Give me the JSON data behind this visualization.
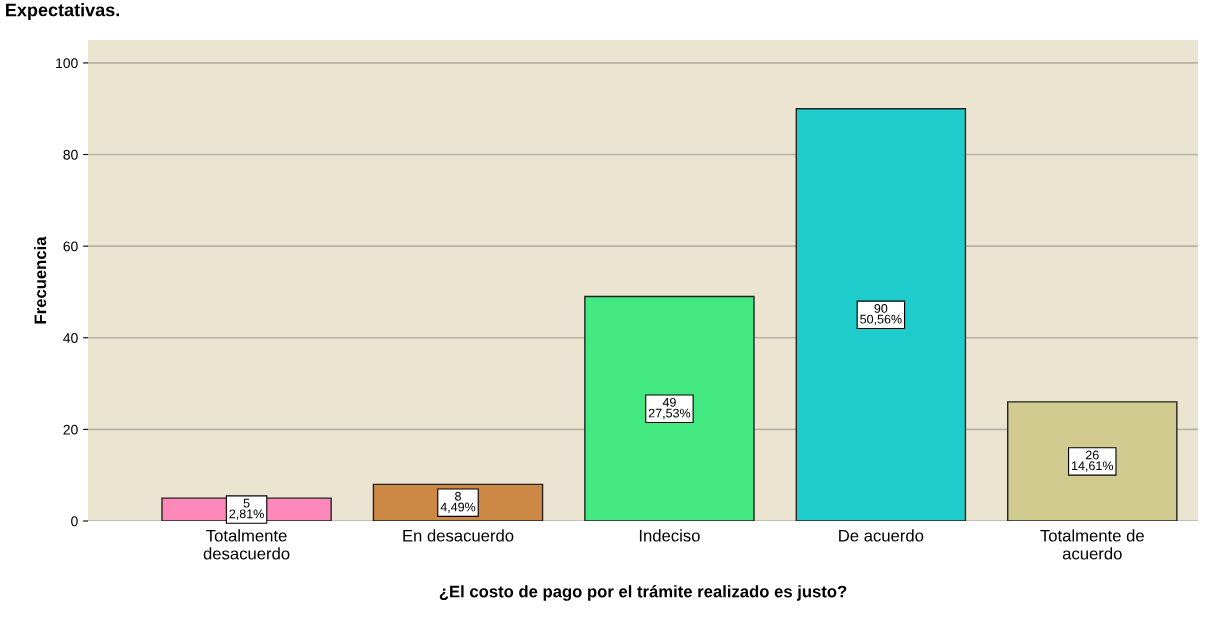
{
  "chart_data": {
    "type": "bar",
    "title": "Expectativas.",
    "xlabel": "¿El costo de pago por el trámite realizado es justo?",
    "ylabel": "Frecuencia",
    "categories": [
      "Totalmente\ndesacuerdo",
      "En desacuerdo",
      "Indeciso",
      "De acuerdo",
      "Totalmente de\nacuerdo"
    ],
    "values": [
      5,
      8,
      49,
      90,
      26
    ],
    "colors": [
      "#ff88bb",
      "#cc8844",
      "#44e880",
      "#1ecccc",
      "#d2cb8f"
    ],
    "value_labels": [
      "5\n2,81%",
      "8\n4,49%",
      "49\n27,53%",
      "90\n50,56%",
      "26\n14,61%"
    ],
    "ylim": [
      0,
      105
    ],
    "yticks": [
      0,
      20,
      40,
      60,
      80,
      100
    ],
    "grid": "y"
  }
}
